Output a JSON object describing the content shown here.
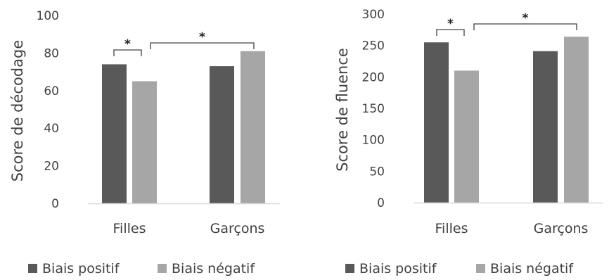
{
  "colors": {
    "positive": "#595959",
    "negative": "#a6a6a6",
    "axis": "#d9d9d9",
    "bracket": "#404040"
  },
  "chart_data": [
    {
      "type": "bar",
      "ylabel": "Score de décodage",
      "ylim": [
        0,
        100
      ],
      "yticks": [
        0,
        20,
        40,
        60,
        80,
        100
      ],
      "categories": [
        "Filles",
        "Garçons"
      ],
      "series": [
        {
          "name": "Biais positif",
          "values": [
            74,
            73
          ]
        },
        {
          "name": "Biais négatif",
          "values": [
            65,
            81
          ]
        }
      ],
      "significance": [
        {
          "label": "*",
          "between": "Filles: Biais positif vs Biais négatif"
        },
        {
          "label": "*",
          "between": "Biais négatif: Filles vs Garçons"
        }
      ],
      "legend_position": "bottom"
    },
    {
      "type": "bar",
      "ylabel": "Score de fluence",
      "ylim": [
        0,
        300
      ],
      "yticks": [
        0,
        50,
        100,
        150,
        200,
        250,
        300
      ],
      "categories": [
        "Filles",
        "Garçons"
      ],
      "series": [
        {
          "name": "Biais positif",
          "values": [
            255,
            241
          ]
        },
        {
          "name": "Biais négatif",
          "values": [
            210,
            264
          ]
        }
      ],
      "significance": [
        {
          "label": "*",
          "between": "Filles: Biais positif vs Biais négatif"
        },
        {
          "label": "*",
          "between": "Biais négatif: Filles vs Garçons"
        }
      ],
      "legend_position": "bottom"
    }
  ]
}
